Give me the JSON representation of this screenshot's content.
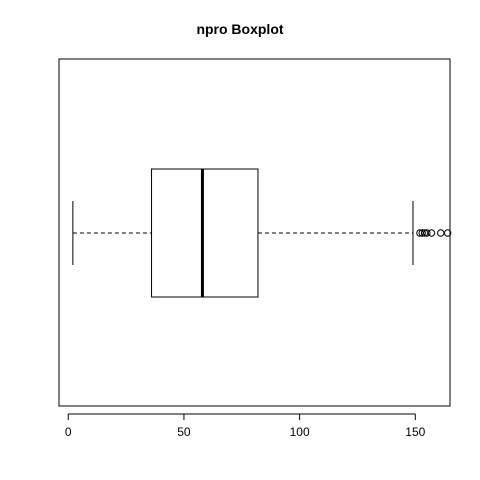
{
  "chart_data": {
    "type": "boxplot",
    "title": "npro Boxplot",
    "orientation": "horizontal",
    "xlim": [
      -4,
      165
    ],
    "ticks": [
      0,
      50,
      100,
      150
    ],
    "tick_labels": [
      "0",
      "50",
      "100",
      "150"
    ],
    "stats": {
      "whisker_low": 2,
      "q1": 36,
      "median": 58,
      "q3": 82,
      "whisker_high": 149
    },
    "outliers": [
      152,
      153,
      154,
      155,
      157,
      161,
      164
    ],
    "grid": false,
    "legend": "none"
  }
}
